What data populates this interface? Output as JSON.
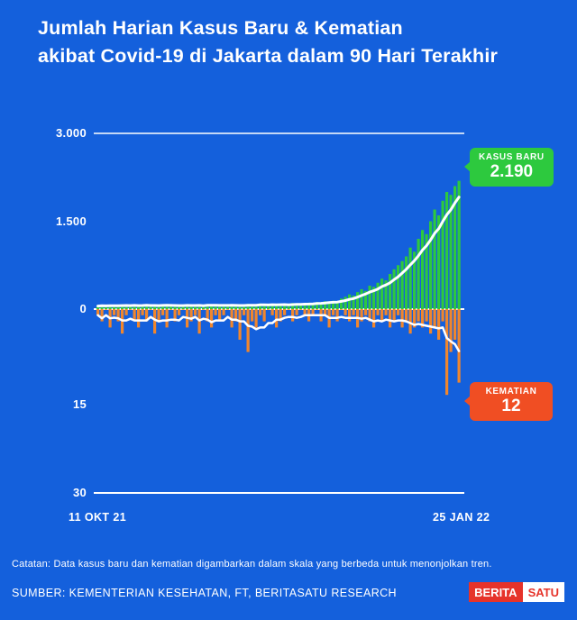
{
  "background_color": "#1460DC",
  "title": {
    "line1": "Jumlah Harian Kasus Baru &  Kematian",
    "line2": "akibat Covid-19 di Jakarta dalam 90 Hari Terakhir"
  },
  "chart_data": {
    "type": "bar",
    "title": "Jumlah Harian Kasus Baru & Kematian akibat Covid-19 di Jakarta dalam 90 Hari Terakhir",
    "x_start_label": "11 OKT 21",
    "x_end_label": "25 JAN 22",
    "y_ticks_cases": [
      "3.000",
      "1.500",
      "0"
    ],
    "y_ticks_deaths": [
      "15",
      "30"
    ],
    "ylim_cases": [
      0,
      3000
    ],
    "ylim_deaths": [
      0,
      30
    ],
    "grid": "horizontal white lines at 3.000, 0 and 30",
    "legend_position": "value badges at right edge",
    "scale_note": "deaths drawn downward on a separate inverted scale",
    "moving_average_window": 7,
    "series": [
      {
        "name": "KASUS BARU",
        "color": "#2DC93E",
        "latest_value": 2190,
        "values": [
          52,
          64,
          48,
          72,
          58,
          45,
          80,
          66,
          54,
          70,
          49,
          62,
          75,
          57,
          68,
          44,
          82,
          60,
          51,
          73,
          47,
          65,
          59,
          78,
          55,
          63,
          46,
          84,
          69,
          52,
          71,
          58,
          66,
          49,
          76,
          61,
          53,
          88,
          72,
          64,
          95,
          70,
          58,
          81,
          67,
          92,
          74,
          60,
          104,
          85,
          78,
          96,
          110,
          90,
          120,
          105,
          135,
          118,
          142,
          128,
          180,
          210,
          250,
          230,
          290,
          340,
          310,
          400,
          380,
          450,
          520,
          490,
          600,
          680,
          750,
          820,
          900,
          1050,
          980,
          1200,
          1350,
          1280,
          1500,
          1700,
          1600,
          1850,
          2000,
          1950,
          2100,
          2190
        ]
      },
      {
        "name": "KEMATIAN",
        "color": "#F0862D",
        "latest_value": 12,
        "inverted": true,
        "values": [
          1,
          2,
          0,
          3,
          1,
          2,
          4,
          1,
          0,
          2,
          3,
          1,
          2,
          0,
          4,
          2,
          1,
          3,
          0,
          2,
          1,
          0,
          3,
          2,
          1,
          4,
          0,
          2,
          3,
          1,
          2,
          1,
          0,
          3,
          2,
          5,
          1,
          7,
          2,
          3,
          1,
          2,
          0,
          1,
          3,
          2,
          1,
          0,
          2,
          1,
          0,
          1,
          2,
          1,
          0,
          2,
          1,
          3,
          1,
          2,
          0,
          1,
          2,
          1,
          3,
          2,
          1,
          2,
          3,
          1,
          2,
          1,
          3,
          2,
          1,
          3,
          2,
          4,
          3,
          2,
          3,
          2,
          4,
          3,
          5,
          2,
          14,
          7,
          5,
          12
        ]
      }
    ]
  },
  "badges": {
    "kasus": {
      "label": "KASUS BARU",
      "value": "2.190",
      "color": "#2DC93E"
    },
    "kematian": {
      "label": "KEMATIAN",
      "value": "12",
      "color": "#F04E23"
    }
  },
  "footer": {
    "note": "Catatan: Data kasus baru dan kematian digambarkan dalam skala yang berbeda untuk menonjolkan tren.",
    "source": "SUMBER: KEMENTERIAN KESEHATAN, FT, BERITASATU RESEARCH"
  },
  "logo": {
    "berita": "BERITA",
    "satu": "SATU"
  }
}
